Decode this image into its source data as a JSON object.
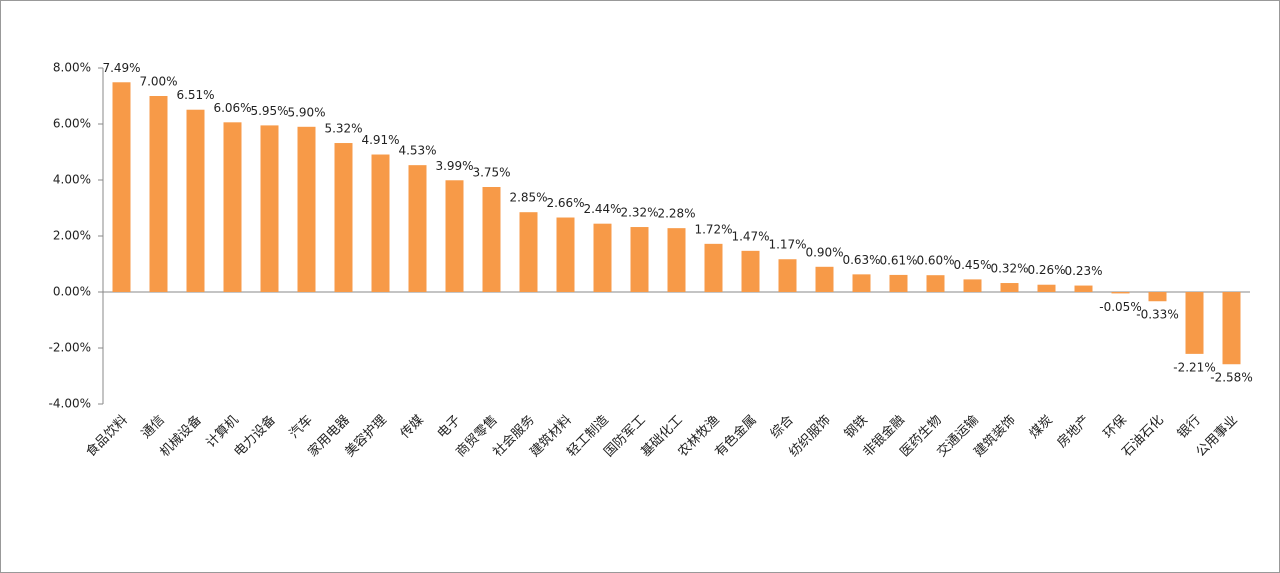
{
  "chart_data": {
    "type": "bar",
    "categories": [
      "食品饮料",
      "通信",
      "机械设备",
      "计算机",
      "电力设备",
      "汽车",
      "家用电器",
      "美容护理",
      "传媒",
      "电子",
      "商贸零售",
      "社会服务",
      "建筑材料",
      "轻工制造",
      "国防军工",
      "基础化工",
      "农林牧渔",
      "有色金属",
      "综合",
      "纺织服饰",
      "钢铁",
      "非银金融",
      "医药生物",
      "交通运输",
      "建筑装饰",
      "煤炭",
      "房地产",
      "环保",
      "石油石化",
      "银行",
      "公用事业"
    ],
    "values": [
      7.49,
      7.0,
      6.51,
      6.06,
      5.95,
      5.9,
      5.32,
      4.91,
      4.53,
      3.99,
      3.75,
      2.85,
      2.66,
      2.44,
      2.32,
      2.28,
      1.72,
      1.47,
      1.17,
      0.9,
      0.63,
      0.61,
      0.6,
      0.45,
      0.32,
      0.26,
      0.23,
      -0.05,
      -0.33,
      -2.21,
      -2.58
    ],
    "value_labels": [
      "7.49%",
      "7.00%",
      "6.51%",
      "6.06%",
      "5.95%",
      "5.90%",
      "5.32%",
      "4.91%",
      "4.53%",
      "3.99%",
      "3.75%",
      "2.85%",
      "2.66%",
      "2.44%",
      "2.32%",
      "2.28%",
      "1.72%",
      "1.47%",
      "1.17%",
      "0.90%",
      "0.63%",
      "0.61%",
      "0.60%",
      "0.45%",
      "0.32%",
      "0.26%",
      "0.23%",
      "-0.05%",
      "-0.33%",
      "-2.21%",
      "-2.58%"
    ],
    "color": "#f79a48",
    "ylim": [
      -4,
      8
    ],
    "yticks": [
      {
        "value": -4,
        "label": "-4.00%"
      },
      {
        "value": -2,
        "label": "-2.00%"
      },
      {
        "value": 0,
        "label": "0.00%"
      },
      {
        "value": 2,
        "label": "2.00%"
      },
      {
        "value": 4,
        "label": "4.00%"
      },
      {
        "value": 6,
        "label": "6.00%"
      },
      {
        "value": 8,
        "label": "8.00%"
      }
    ],
    "grid": false
  }
}
